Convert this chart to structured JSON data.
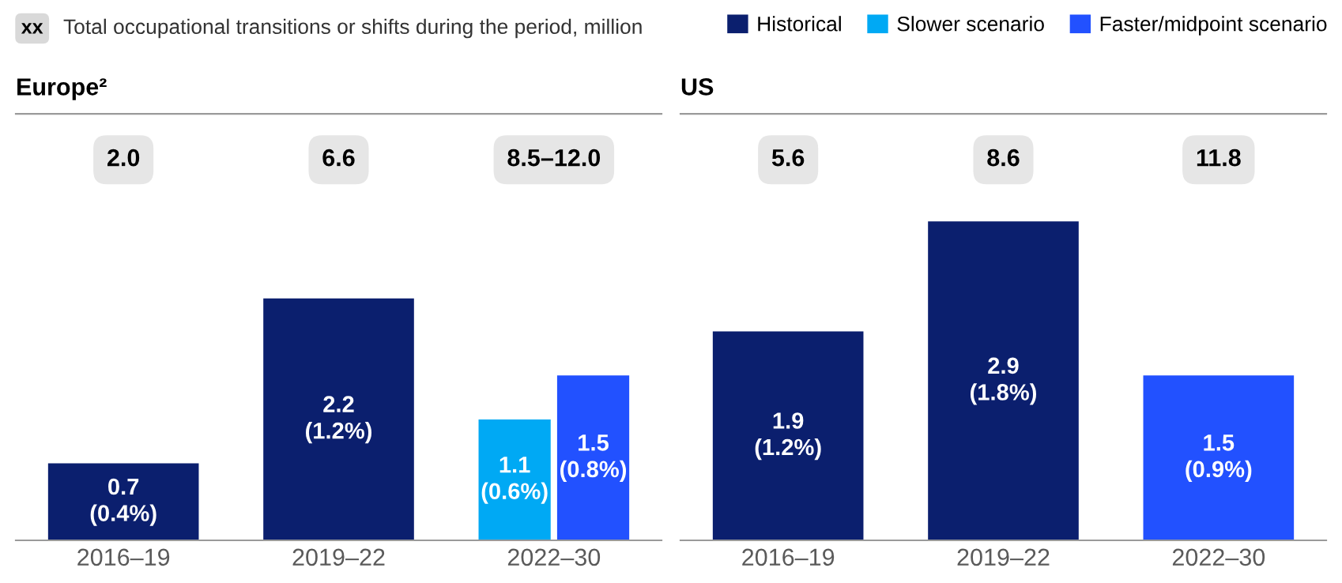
{
  "chart_data": [
    {
      "type": "bar",
      "title": "Europe²",
      "categories": [
        "2016–19",
        "2019–22",
        "2022–30"
      ],
      "tick_labels": "x",
      "data_labels": true,
      "legend": "top",
      "series": [
        {
          "name": "Historical",
          "color": "#0b1f6e",
          "values": [
            0.7,
            2.2,
            null
          ],
          "value_labels": [
            "0.7\n(0.4%)",
            "2.2\n(1.2%)",
            null
          ]
        },
        {
          "name": "Slower scenario",
          "color": "#00a9f4",
          "values": [
            null,
            null,
            1.1
          ],
          "value_labels": [
            null,
            null,
            "1.1\n(0.6%)"
          ]
        },
        {
          "name": "Faster/midpoint scenario",
          "color": "#2251ff",
          "values": [
            null,
            null,
            1.5
          ],
          "value_labels": [
            null,
            null,
            "1.5\n(0.8%)"
          ]
        }
      ],
      "annotations": [
        "xx",
        "Total occupational transitions or shifts during the period, million",
        "2.0",
        "6.6",
        "8.5–12.0"
      ]
    },
    {
      "type": "bar",
      "title": "US",
      "categories": [
        "2016–19",
        "2019–22",
        "2022–30"
      ],
      "tick_labels": "x",
      "data_labels": true,
      "series": [
        {
          "name": "Historical",
          "color": "#0b1f6e",
          "values": [
            1.9,
            2.9,
            null
          ],
          "value_labels": [
            "1.9\n(1.2%)",
            "2.9\n(1.8%)",
            null
          ]
        },
        {
          "name": "Faster/midpoint scenario",
          "color": "#2251ff",
          "values": [
            null,
            null,
            1.5
          ],
          "value_labels": [
            null,
            null,
            "1.5\n(0.9%)"
          ]
        }
      ],
      "annotations": [
        "5.6",
        "8.6",
        "11.8"
      ]
    }
  ]
}
